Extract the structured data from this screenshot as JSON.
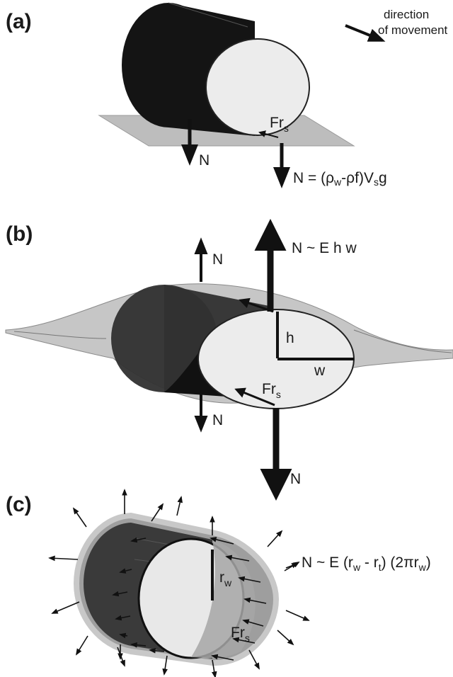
{
  "panels": {
    "a": {
      "label": "(a)",
      "direction_line1": "direction",
      "direction_line2": "of movement",
      "friction": "Fr",
      "friction_sub": "s",
      "normal_left": "N",
      "normal_formula_prefix": "N = (ρ",
      "normal_formula_w": "w",
      "normal_formula_mid": "-ρ",
      "normal_formula_f": "f)V",
      "normal_formula_s": "s",
      "normal_formula_end": "g"
    },
    "b": {
      "label": "(b)",
      "normal_top_left": "N",
      "normal_top_right": "N ~ E h w",
      "height": "h",
      "width": "w",
      "friction": "Fr",
      "friction_sub": "s",
      "normal_bottom_left": "N",
      "normal_bottom_right": "N"
    },
    "c": {
      "label": "(c)",
      "radius": "r",
      "radius_sub": "w",
      "friction": "Fr",
      "friction_sub": "s",
      "normal_formula_prefix": "N ~ E (r",
      "normal_formula_w1": "w",
      "normal_formula_mid": " - r",
      "normal_formula_t": "t",
      "normal_formula_mid2": ") (2πr",
      "normal_formula_w2": "w",
      "normal_formula_end": ")"
    }
  },
  "colors": {
    "body_dark": "#141414",
    "face_light": "#ececec",
    "plane_grey": "#b8b8b8",
    "shell_grey": "#9a9a9a",
    "tube_dark": "#3a3a3a"
  }
}
